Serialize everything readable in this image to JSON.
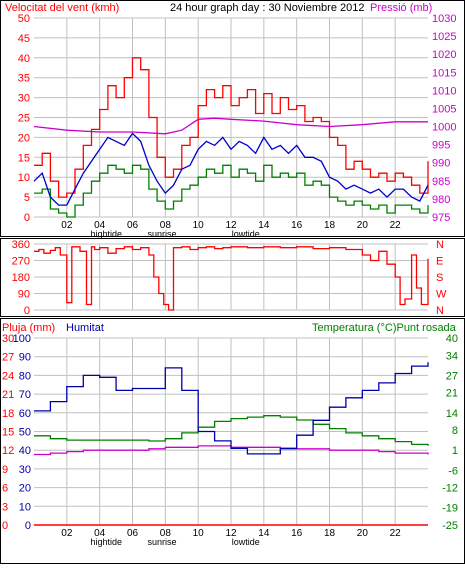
{
  "header": {
    "title": "24 hour graph day : 30 Noviembre 2012",
    "left_label": "Velocitat del vent (kmh)",
    "right_label": "Pressió (mb)"
  },
  "colors": {
    "wind_max": "#ff0000",
    "wind_avg": "#0000cc",
    "wind_min": "#008000",
    "pressure": "#cc00cc",
    "wind_dir": "#ff0000",
    "humidity": "#0000aa",
    "temperature": "#008000",
    "dewpoint": "#cc00cc",
    "rain": "#ff0000",
    "grid": "#c0c0c0",
    "frame": "#000000",
    "bg": "#ffffff"
  },
  "chart_data": [
    {
      "type": "line",
      "name": "wind-pressure-chart",
      "title": "24 hour graph day : 30 Noviembre 2012",
      "ylabel_left": "Velocitat del vent (kmh)",
      "ylabel_right": "Pressió (mb)",
      "ylim_left": [
        0,
        50
      ],
      "ylim_right": [
        975,
        1030
      ],
      "yticks_left": [
        0,
        5,
        10,
        15,
        20,
        25,
        30,
        35,
        40,
        45,
        50
      ],
      "yticks_right": [
        975,
        980,
        985,
        990,
        995,
        1000,
        1005,
        1010,
        1015,
        1020,
        1025,
        1030
      ],
      "x_hours_start": 0,
      "x_hours_end": 24,
      "x_ticks": [
        "02",
        "04",
        "06",
        "08",
        "10",
        "12",
        "14",
        "16",
        "18",
        "20",
        "22"
      ],
      "x_tick_hours": [
        2,
        4,
        6,
        8,
        10,
        12,
        14,
        16,
        18,
        20,
        22
      ],
      "events": [
        {
          "label": "hightide",
          "hour": 4.4
        },
        {
          "label": "sunrise",
          "hour": 7.8
        },
        {
          "label": "lowtide",
          "hour": 12.9
        }
      ],
      "series": [
        {
          "name": "Velocitat del vent",
          "x": [
            0,
            0.5,
            1,
            1.5,
            2,
            2.5,
            3,
            3.5,
            4,
            4.5,
            5,
            5.5,
            6,
            6.5,
            7,
            7.5,
            8,
            8.5,
            9,
            9.5,
            10,
            10.5,
            11,
            11.5,
            12,
            12.5,
            13,
            13.5,
            14,
            14.5,
            15,
            15.5,
            16,
            16.5,
            17,
            17.5,
            18,
            18.5,
            19,
            19.5,
            20,
            20.5,
            21,
            21.5,
            22,
            22.5,
            23,
            23.5,
            24
          ],
          "max": [
            13,
            16,
            9,
            5,
            6,
            12,
            18,
            22,
            27,
            33,
            30,
            35,
            40,
            37,
            25,
            15,
            10,
            12,
            18,
            20,
            28,
            32,
            30,
            33,
            28,
            30,
            32,
            26,
            31,
            26,
            30,
            27,
            28,
            24,
            25,
            24,
            20,
            18,
            12,
            14,
            12,
            10,
            11,
            9,
            11,
            10,
            8,
            6,
            14
          ],
          "avg": [
            9,
            11,
            5,
            3,
            3,
            7,
            11,
            14,
            17,
            20,
            19,
            18,
            21,
            19,
            13,
            9,
            6,
            8,
            12,
            13,
            17,
            19,
            18,
            20,
            17,
            19,
            18,
            16,
            20,
            17,
            18,
            16,
            18,
            15,
            15,
            14,
            10,
            9,
            7,
            8,
            7,
            6,
            7,
            5,
            7,
            7,
            5,
            4,
            8
          ],
          "min": [
            6,
            7,
            2,
            1,
            0,
            3,
            6,
            9,
            11,
            13,
            12,
            11,
            13,
            12,
            7,
            4,
            2,
            4,
            7,
            8,
            10,
            12,
            11,
            13,
            10,
            12,
            11,
            9,
            13,
            10,
            11,
            10,
            11,
            8,
            9,
            8,
            5,
            4,
            3,
            4,
            3,
            2,
            3,
            1,
            3,
            3,
            2,
            1,
            3
          ]
        },
        {
          "name": "Pressió",
          "x": [
            0,
            2,
            4,
            6,
            8,
            9,
            10,
            11,
            12,
            14,
            16,
            18,
            20,
            22,
            24
          ],
          "values": [
            1000,
            999,
            998.5,
            998.5,
            998,
            999,
            1002,
            1002.3,
            1002,
            1001.5,
            1000.5,
            1000,
            1000.5,
            1001.3,
            1001.3
          ]
        }
      ]
    },
    {
      "type": "line",
      "name": "wind-direction-chart",
      "ylim": [
        0,
        360
      ],
      "yticks": [
        0,
        90,
        180,
        270,
        360
      ],
      "ylabels_right": [
        "N",
        "W",
        "S",
        "E",
        "N"
      ],
      "series": [
        {
          "name": "Direcció del vent",
          "x": [
            0,
            0.3,
            0.6,
            1,
            1.3,
            1.6,
            2.0,
            2.3,
            2.8,
            3.2,
            3.5,
            3.7,
            4.0,
            4.5,
            5,
            5.5,
            6,
            6.5,
            7,
            7.3,
            7.6,
            7.9,
            8.2,
            8.5,
            9,
            9.5,
            10,
            10.5,
            11,
            11.5,
            12,
            13,
            14,
            15,
            16,
            17,
            18,
            19,
            20,
            20.5,
            21,
            21.5,
            22,
            22.3,
            22.6,
            23,
            23.3,
            23.6,
            24
          ],
          "values": [
            320,
            330,
            310,
            325,
            340,
            300,
            40,
            345,
            320,
            30,
            345,
            330,
            340,
            310,
            335,
            345,
            330,
            340,
            300,
            180,
            90,
            30,
            0,
            340,
            345,
            330,
            340,
            345,
            335,
            340,
            345,
            340,
            345,
            340,
            345,
            335,
            340,
            330,
            300,
            270,
            320,
            250,
            180,
            30,
            60,
            300,
            120,
            30,
            280
          ]
        }
      ]
    },
    {
      "type": "line",
      "name": "humidity-temperature-chart",
      "ylabel_left": "Pluja (mm)",
      "ylabel_humidity": "Humitat",
      "ylabel_right": "Temperatura (°C)Punt rosada",
      "ylim_rain": [
        0,
        30
      ],
      "ylim_humidity": [
        0,
        100
      ],
      "ylim_temperature": [
        -25,
        40
      ],
      "yticks_rain": [
        0,
        3,
        6,
        9,
        12,
        15,
        18,
        21,
        24,
        27,
        30
      ],
      "yticks_humidity": [
        0,
        10,
        20,
        30,
        40,
        50,
        60,
        70,
        80,
        90,
        100
      ],
      "yticks_temperature": [
        -25,
        -19,
        -12,
        -6,
        1,
        8,
        14,
        21,
        27,
        34,
        40
      ],
      "series": [
        {
          "name": "Humitat",
          "x": [
            0,
            1,
            2,
            3,
            4,
            5,
            6,
            7,
            8,
            9,
            10,
            11,
            12,
            13,
            14,
            15,
            16,
            17,
            18,
            19,
            20,
            21,
            22,
            23,
            24
          ],
          "values": [
            61,
            66,
            74,
            80,
            79,
            72,
            73,
            73,
            84,
            72,
            50,
            45,
            41,
            38,
            38,
            41,
            48,
            56,
            63,
            68,
            72,
            76,
            81,
            85,
            87
          ]
        },
        {
          "name": "Temperatura",
          "x": [
            0,
            1,
            2,
            3,
            4,
            5,
            6,
            7,
            8,
            9,
            10,
            11,
            12,
            13,
            14,
            15,
            16,
            17,
            18,
            19,
            20,
            21,
            22,
            23,
            24
          ],
          "values": [
            6,
            5,
            4.5,
            4.5,
            4.5,
            4.5,
            4.5,
            4.2,
            5,
            7,
            9,
            11,
            12,
            12.5,
            13,
            12.5,
            11.5,
            10,
            8.5,
            7,
            6,
            5,
            4,
            3,
            2.5
          ]
        },
        {
          "name": "Punt rosada",
          "x": [
            0,
            1,
            2,
            3,
            4,
            5,
            6,
            7,
            8,
            9,
            10,
            11,
            12,
            13,
            14,
            15,
            16,
            17,
            18,
            19,
            20,
            21,
            22,
            23,
            24
          ],
          "values": [
            -0.5,
            0,
            0.5,
            1,
            1,
            1,
            1,
            1.5,
            2,
            2,
            2.5,
            2.5,
            2,
            2,
            2,
            1.5,
            1.5,
            1.5,
            1,
            1,
            1,
            0.5,
            0,
            0,
            -0.5
          ]
        },
        {
          "name": "Pluja",
          "x": [
            0,
            24
          ],
          "values": [
            0,
            0
          ]
        }
      ]
    }
  ]
}
